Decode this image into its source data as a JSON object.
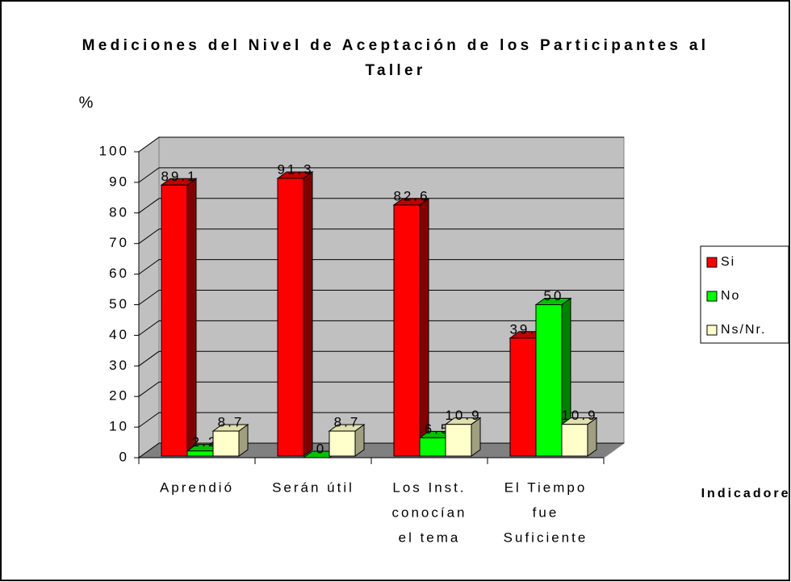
{
  "chart_data": {
    "type": "bar3d",
    "title": [
      "Mediciones del Nivel de Aceptación de los Participantes al",
      "Taller"
    ],
    "y_label": "%",
    "x_label": "Indicadores",
    "categories": [
      [
        "Aprendió"
      ],
      [
        "Serán útil"
      ],
      [
        "Los Inst.",
        "conocían",
        "el tema"
      ],
      [
        "El Tiempo",
        "fue",
        "Suficiente"
      ]
    ],
    "series": [
      {
        "name": "Si",
        "color": "#ff0000",
        "values": [
          89.1,
          91.3,
          82.6,
          39.1
        ]
      },
      {
        "name": "No",
        "color": "#00ff00",
        "values": [
          2.2,
          0,
          6.5,
          50
        ]
      },
      {
        "name": "Ns/Nr.",
        "color": "#ffffcc",
        "values": [
          8.7,
          8.7,
          10.9,
          10.9
        ]
      }
    ],
    "ylim": [
      0,
      100
    ],
    "yticks": [
      0,
      10,
      20,
      30,
      40,
      50,
      60,
      70,
      80,
      90,
      100
    ],
    "grid": true,
    "legend": "right"
  }
}
